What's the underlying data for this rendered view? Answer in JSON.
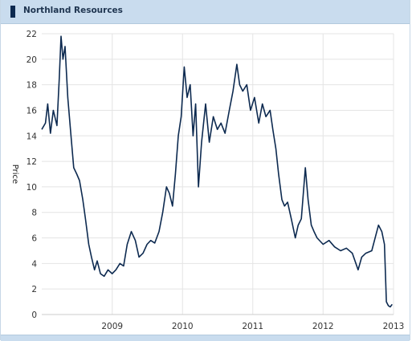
{
  "header": {
    "title": "Northland Resources",
    "swatch_color": "#0d2a50"
  },
  "chart_data": {
    "type": "line",
    "title": "Northland Resources",
    "xlabel": "",
    "ylabel": "Price",
    "ylim": [
      0,
      22
    ],
    "y_ticks": [
      "0",
      "2",
      "4",
      "6",
      "8",
      "10",
      "12",
      "14",
      "16",
      "18",
      "20",
      "22"
    ],
    "x_ticks": [
      "2009",
      "2010",
      "2011",
      "2012",
      "2013"
    ],
    "xlim": [
      "2008-01-01",
      "2013-01-01"
    ],
    "grid": true,
    "line_color": "#0d2a50",
    "series": [
      {
        "values": [
          [
            "2008-01-01",
            14.5
          ],
          [
            "2008-01-20",
            15.0
          ],
          [
            "2008-02-01",
            16.5
          ],
          [
            "2008-02-15",
            14.2
          ],
          [
            "2008-03-01",
            16.0
          ],
          [
            "2008-03-20",
            14.8
          ],
          [
            "2008-04-01",
            18.5
          ],
          [
            "2008-04-10",
            21.8
          ],
          [
            "2008-04-20",
            20.0
          ],
          [
            "2008-05-01",
            21.0
          ],
          [
            "2008-05-15",
            17.0
          ],
          [
            "2008-06-01",
            14.0
          ],
          [
            "2008-06-15",
            11.5
          ],
          [
            "2008-07-01",
            11.0
          ],
          [
            "2008-07-15",
            10.5
          ],
          [
            "2008-08-01",
            9.0
          ],
          [
            "2008-08-15",
            7.5
          ],
          [
            "2008-09-01",
            5.5
          ],
          [
            "2008-09-15",
            4.5
          ],
          [
            "2008-10-01",
            3.5
          ],
          [
            "2008-10-15",
            4.2
          ],
          [
            "2008-11-01",
            3.2
          ],
          [
            "2008-11-20",
            3.0
          ],
          [
            "2008-12-10",
            3.5
          ],
          [
            "2009-01-01",
            3.2
          ],
          [
            "2009-01-20",
            3.5
          ],
          [
            "2009-02-10",
            4.0
          ],
          [
            "2009-03-01",
            3.8
          ],
          [
            "2009-03-20",
            5.5
          ],
          [
            "2009-04-10",
            6.5
          ],
          [
            "2009-05-01",
            5.8
          ],
          [
            "2009-05-20",
            4.5
          ],
          [
            "2009-06-10",
            4.8
          ],
          [
            "2009-07-01",
            5.5
          ],
          [
            "2009-07-20",
            5.8
          ],
          [
            "2009-08-10",
            5.6
          ],
          [
            "2009-09-01",
            6.5
          ],
          [
            "2009-09-20",
            8.0
          ],
          [
            "2009-10-10",
            10.0
          ],
          [
            "2009-10-25",
            9.5
          ],
          [
            "2009-11-10",
            8.5
          ],
          [
            "2009-11-25",
            11.0
          ],
          [
            "2009-12-10",
            14.0
          ],
          [
            "2009-12-25",
            15.5
          ],
          [
            "2010-01-10",
            19.4
          ],
          [
            "2010-01-25",
            17.0
          ],
          [
            "2010-02-10",
            18.0
          ],
          [
            "2010-02-25",
            14.0
          ],
          [
            "2010-03-10",
            16.5
          ],
          [
            "2010-03-25",
            10.0
          ],
          [
            "2010-04-10",
            13.5
          ],
          [
            "2010-05-01",
            16.5
          ],
          [
            "2010-05-20",
            13.5
          ],
          [
            "2010-06-10",
            15.5
          ],
          [
            "2010-07-01",
            14.5
          ],
          [
            "2010-07-20",
            15.0
          ],
          [
            "2010-08-10",
            14.2
          ],
          [
            "2010-09-01",
            16.0
          ],
          [
            "2010-09-20",
            17.5
          ],
          [
            "2010-10-10",
            19.6
          ],
          [
            "2010-10-25",
            18.0
          ],
          [
            "2010-11-10",
            17.5
          ],
          [
            "2010-12-01",
            18.0
          ],
          [
            "2010-12-20",
            16.0
          ],
          [
            "2011-01-10",
            17.0
          ],
          [
            "2011-02-01",
            15.0
          ],
          [
            "2011-02-20",
            16.5
          ],
          [
            "2011-03-10",
            15.5
          ],
          [
            "2011-04-01",
            16.0
          ],
          [
            "2011-04-15",
            14.5
          ],
          [
            "2011-05-01",
            13.0
          ],
          [
            "2011-05-15",
            11.0
          ],
          [
            "2011-06-01",
            9.0
          ],
          [
            "2011-06-15",
            8.5
          ],
          [
            "2011-07-01",
            8.8
          ],
          [
            "2011-07-20",
            7.5
          ],
          [
            "2011-08-10",
            6.0
          ],
          [
            "2011-08-25",
            7.0
          ],
          [
            "2011-09-10",
            7.5
          ],
          [
            "2011-10-01",
            11.5
          ],
          [
            "2011-10-15",
            9.0
          ],
          [
            "2011-11-01",
            7.0
          ],
          [
            "2011-11-15",
            6.5
          ],
          [
            "2011-12-01",
            6.0
          ],
          [
            "2012-01-01",
            5.5
          ],
          [
            "2012-02-01",
            5.8
          ],
          [
            "2012-03-01",
            5.3
          ],
          [
            "2012-04-01",
            5.0
          ],
          [
            "2012-05-01",
            5.2
          ],
          [
            "2012-06-01",
            4.8
          ],
          [
            "2012-07-01",
            3.5
          ],
          [
            "2012-07-20",
            4.5
          ],
          [
            "2012-08-10",
            4.8
          ],
          [
            "2012-09-10",
            5.0
          ],
          [
            "2012-10-01",
            6.2
          ],
          [
            "2012-10-15",
            7.0
          ],
          [
            "2012-11-01",
            6.5
          ],
          [
            "2012-11-15",
            5.5
          ],
          [
            "2012-11-25",
            1.0
          ],
          [
            "2012-12-05",
            0.7
          ],
          [
            "2012-12-15",
            0.6
          ],
          [
            "2012-12-25",
            0.8
          ]
        ]
      }
    ]
  }
}
